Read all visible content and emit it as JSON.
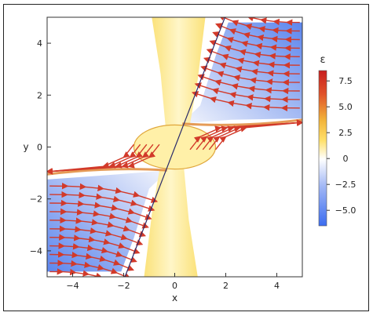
{
  "chart_data": {
    "type": "heatmap",
    "subtype": "stream-plot-with-density",
    "xlabel": "x",
    "ylabel": "y",
    "xlim": [
      -5,
      5
    ],
    "ylim": [
      -5,
      5
    ],
    "x_ticks": [
      "−4",
      "−2",
      "0",
      "2",
      "4"
    ],
    "x_tick_values": [
      -4,
      -2,
      0,
      2,
      4
    ],
    "y_ticks": [
      "−4",
      "−2",
      "0",
      "2",
      "4"
    ],
    "y_tick_values": [
      -4,
      -2,
      0,
      2,
      4
    ],
    "grid": false,
    "colorbar": {
      "title": "ε",
      "placement": "right",
      "range": [
        -6.5,
        8.5
      ],
      "ticks": [
        "7.5",
        "5.0",
        "2.5",
        "0",
        "−2.5",
        "−5.0"
      ],
      "tick_values": [
        7.5,
        5.0,
        2.5,
        0,
        -2.5,
        -5.0
      ],
      "colors": [
        "#3b6cf0",
        "#9fb6f5",
        "#ffffff",
        "#ffe06a",
        "#f2b43a",
        "#e0522a",
        "#c81e1e"
      ]
    },
    "line": {
      "description": "diagonal line through origin",
      "x": [
        -1.95,
        1.97
      ],
      "y": [
        -5,
        5
      ],
      "color": "#2a2a6a"
    },
    "stream_color": "#d23a2a"
  }
}
